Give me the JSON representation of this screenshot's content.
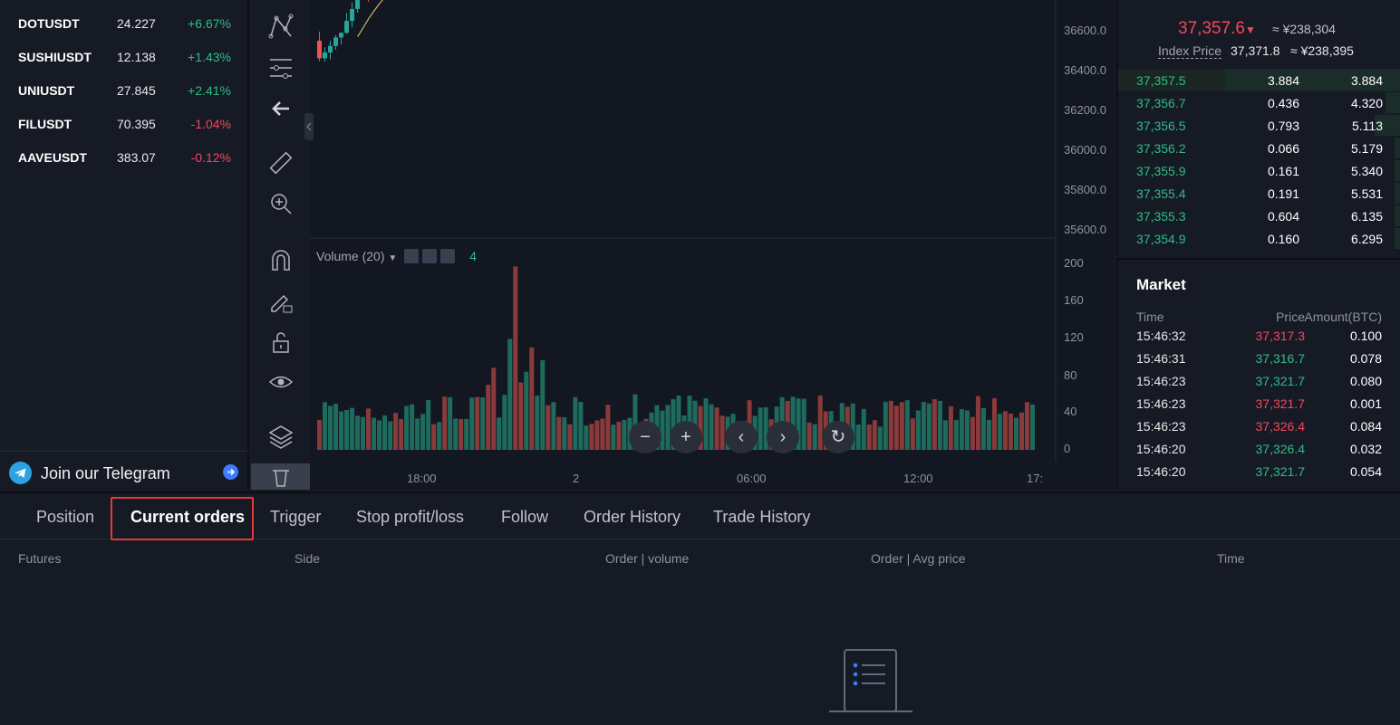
{
  "watchlist": [
    {
      "symbol": "DOTUSDT",
      "price": "24.227",
      "change": "+6.67%",
      "dir": "up"
    },
    {
      "symbol": "SUSHIUSDT",
      "price": "12.138",
      "change": "+1.43%",
      "dir": "up"
    },
    {
      "symbol": "UNIUSDT",
      "price": "27.845",
      "change": "+2.41%",
      "dir": "up"
    },
    {
      "symbol": "FILUSDT",
      "price": "70.395",
      "change": "-1.04%",
      "dir": "down"
    },
    {
      "symbol": "AAVEUSDT",
      "price": "383.07",
      "change": "-0.12%",
      "dir": "down"
    }
  ],
  "telegram": {
    "label": "Join our Telegram"
  },
  "chart": {
    "price_axis": [
      "36600.0",
      "36400.0",
      "36200.0",
      "36000.0",
      "35800.0",
      "35600.0"
    ],
    "volume_axis": [
      "200",
      "160",
      "120",
      "80",
      "40",
      "0"
    ],
    "time_axis": [
      "18:00",
      "2",
      "06:00",
      "12:00",
      "17:"
    ],
    "volume_legend": {
      "label": "Volume (20)",
      "value": "4"
    },
    "colors": {
      "up": "#26a69a",
      "down": "#ef5350",
      "up_vol": "#1e6b5e",
      "down_vol": "#8b3a3a",
      "ma1": "#c8b56b",
      "ma2": "#5a8bd6",
      "ma3": "#9c4fa8"
    }
  },
  "orderbook": {
    "last_price": "37,357.6",
    "last_price_cny": "≈ ¥238,304",
    "index_label": "Index Price",
    "index_price": "37,371.8",
    "index_cny": "≈ ¥238,395",
    "bids": [
      {
        "price": "37,357.5",
        "amount": "3.884",
        "total": "3.884",
        "depth": 0.62
      },
      {
        "price": "37,356.7",
        "amount": "0.436",
        "total": "4.320",
        "depth": 0.05
      },
      {
        "price": "37,356.5",
        "amount": "0.793",
        "total": "5.113",
        "depth": 0.09
      },
      {
        "price": "37,356.2",
        "amount": "0.066",
        "total": "5.179",
        "depth": 0.02
      },
      {
        "price": "37,355.9",
        "amount": "0.161",
        "total": "5.340",
        "depth": 0.02
      },
      {
        "price": "37,355.4",
        "amount": "0.191",
        "total": "5.531",
        "depth": 0.02
      },
      {
        "price": "37,355.3",
        "amount": "0.604",
        "total": "6.135",
        "depth": 0.02
      },
      {
        "price": "37,354.9",
        "amount": "0.160",
        "total": "6.295",
        "depth": 0.02
      }
    ]
  },
  "market": {
    "title": "Market",
    "headers": {
      "time": "Time",
      "price": "Price",
      "amount": "Amount(BTC)"
    },
    "trades": [
      {
        "time": "15:46:32",
        "price": "37,317.3",
        "amount": "0.100",
        "dir": "down"
      },
      {
        "time": "15:46:31",
        "price": "37,316.7",
        "amount": "0.078",
        "dir": "up"
      },
      {
        "time": "15:46:23",
        "price": "37,321.7",
        "amount": "0.080",
        "dir": "up"
      },
      {
        "time": "15:46:23",
        "price": "37,321.7",
        "amount": "0.001",
        "dir": "down"
      },
      {
        "time": "15:46:23",
        "price": "37,326.4",
        "amount": "0.084",
        "dir": "down"
      },
      {
        "time": "15:46:20",
        "price": "37,326.4",
        "amount": "0.032",
        "dir": "up"
      },
      {
        "time": "15:46:20",
        "price": "37,321.7",
        "amount": "0.054",
        "dir": "up"
      }
    ]
  },
  "orders": {
    "tabs": [
      "Position",
      "Current orders",
      "Trigger",
      "Stop profit/loss",
      "Follow",
      "Order History",
      "Trade History"
    ],
    "active_tab": "Current orders",
    "columns": [
      "Futures",
      "Side",
      "Order | volume",
      "Order | Avg price",
      "Time"
    ]
  }
}
